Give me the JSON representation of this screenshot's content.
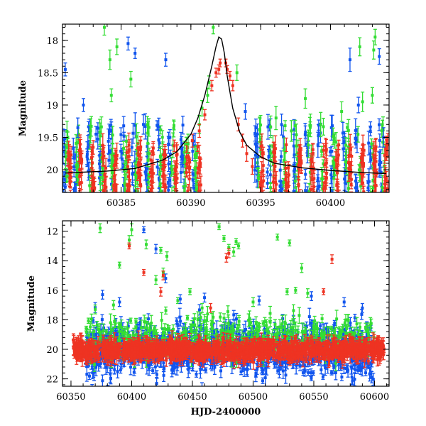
{
  "colors": {
    "green": "#33dd33",
    "blue": "#1155ee",
    "red": "#ee3322",
    "model": "#000000"
  },
  "chart_data": [
    {
      "type": "scatter",
      "xlabel": "",
      "ylabel": "Magnitude",
      "xlim": [
        60380.8,
        60404.2
      ],
      "ylim": [
        20.35,
        17.75
      ],
      "y_inverted": true,
      "xticks": [
        60385,
        60390,
        60395,
        60400
      ],
      "yticks": [
        18,
        18.5,
        19,
        19.5,
        20
      ],
      "grid": false,
      "series": [
        {
          "color_key": "green",
          "x": [
            60383.8,
            60384.2,
            60384.3,
            60384.7,
            60385.7,
            60389.8,
            60390.6,
            60390.8,
            60391.2,
            60391.3,
            60391.6,
            60400.8,
            60402.1,
            60402.3,
            60403.0,
            60403.1,
            60403.2,
            60396.1,
            60397.2,
            60398.2,
            60393.3
          ],
          "y": [
            17.8,
            18.3,
            18.85,
            18.1,
            18.6,
            19.6,
            19.3,
            19.05,
            18.85,
            18.65,
            17.8,
            19.1,
            18.1,
            18.95,
            18.85,
            18.15,
            17.95,
            19.2,
            19.4,
            18.9,
            18.5
          ],
          "err": [
            0.12,
            0.15,
            0.1,
            0.12,
            0.12,
            0.15,
            0.14,
            0.12,
            0.11,
            0.1,
            0.1,
            0.15,
            0.14,
            0.15,
            0.12,
            0.14,
            0.12,
            0.18,
            0.16,
            0.15,
            0.12
          ]
        },
        {
          "color_key": "blue",
          "x": [
            60381.0,
            60381.9,
            60382.3,
            60383.2,
            60385.5,
            60386.0,
            60386.6,
            60388.2,
            60388.5,
            60389.3,
            60393.9,
            60394.8,
            60401.4,
            60402.0,
            60403.5,
            60403.8
          ],
          "y": [
            18.45,
            19.35,
            19.0,
            19.45,
            18.05,
            18.2,
            19.3,
            18.3,
            19.5,
            19.8,
            19.1,
            19.8,
            18.3,
            19.0,
            18.25,
            19.5
          ],
          "err": [
            0.1,
            0.15,
            0.1,
            0.12,
            0.1,
            0.08,
            0.15,
            0.1,
            0.12,
            0.12,
            0.12,
            0.15,
            0.18,
            0.12,
            0.12,
            0.15
          ]
        },
        {
          "color_key": "red",
          "x": [
            60390.1,
            60390.6,
            60391.0,
            60391.5,
            60391.8,
            60392.0,
            60392.1,
            60392.5,
            60392.6,
            60392.8,
            60393.0,
            60393.4,
            60393.7,
            60394.0,
            60394.4
          ],
          "y": [
            19.55,
            19.4,
            19.15,
            18.7,
            18.5,
            18.45,
            18.35,
            18.35,
            18.45,
            18.55,
            18.7,
            19.3,
            19.55,
            19.75,
            19.95
          ],
          "err": [
            0.1,
            0.1,
            0.08,
            0.08,
            0.07,
            0.07,
            0.06,
            0.06,
            0.06,
            0.07,
            0.08,
            0.1,
            0.1,
            0.12,
            0.12
          ]
        }
      ],
      "model_curve": {
        "x": [
          60381,
          60384,
          60386,
          60388,
          60389,
          60390,
          60390.5,
          60391,
          60391.5,
          60391.8,
          60392.0,
          60392.2,
          60392.4,
          60392.6,
          60393.0,
          60393.5,
          60394,
          60395,
          60396,
          60398,
          60400,
          60402,
          60404
        ],
        "y": [
          20.05,
          20.02,
          19.98,
          19.85,
          19.72,
          19.45,
          19.2,
          18.85,
          18.4,
          18.1,
          17.95,
          17.98,
          18.2,
          18.55,
          19.05,
          19.42,
          19.62,
          19.8,
          19.9,
          19.97,
          20.01,
          20.04,
          20.06
        ]
      }
    },
    {
      "type": "scatter",
      "xlabel": "HJD-2400000",
      "ylabel": "Magnitude",
      "xlim": [
        60343,
        60612
      ],
      "ylim": [
        22.5,
        11.3
      ],
      "y_inverted": true,
      "xticks": [
        60350,
        60400,
        60450,
        60500,
        60550,
        60600
      ],
      "yticks": [
        12,
        14,
        16,
        18,
        20,
        22
      ],
      "grid": false,
      "series": [
        {
          "color_key": "green",
          "x": [
            60374,
            60390,
            60398,
            60400,
            60412,
            60424,
            60426,
            60429,
            60438,
            60448,
            60472,
            60476,
            60480,
            60484,
            60486,
            60488,
            60520,
            60528,
            60530,
            60535,
            60540,
            60545,
            60370,
            60385,
            60420,
            60458,
            60500
          ],
          "y": [
            11.8,
            14.3,
            12.6,
            11.9,
            12.9,
            13.3,
            14.8,
            13.7,
            16.7,
            16.1,
            11.7,
            12.5,
            13.1,
            13.4,
            12.7,
            13.0,
            12.4,
            16.1,
            12.8,
            16.0,
            14.5,
            16.2,
            17.3,
            17.0,
            15.3,
            17.2,
            16.8
          ],
          "err": [
            0.3,
            0.2,
            0.3,
            0.4,
            0.3,
            0.2,
            0.3,
            0.3,
            0.2,
            0.2,
            0.2,
            0.2,
            0.2,
            0.3,
            0.2,
            0.2,
            0.2,
            0.2,
            0.2,
            0.2,
            0.3,
            0.3,
            0.3,
            0.3,
            0.3,
            0.3,
            0.3
          ]
        },
        {
          "color_key": "blue",
          "x": [
            60410,
            60420,
            60428,
            60376,
            60390,
            60440,
            60460,
            60505,
            60548,
            60575,
            60590
          ],
          "y": [
            11.9,
            13.2,
            15.2,
            16.3,
            16.8,
            16.6,
            16.5,
            16.7,
            16.4,
            16.8,
            17.2
          ],
          "err": [
            0.2,
            0.3,
            0.3,
            0.3,
            0.3,
            0.3,
            0.3,
            0.3,
            0.3,
            0.3,
            0.3
          ]
        },
        {
          "color_key": "red",
          "x": [
            60398,
            60410,
            60424,
            60426,
            60478,
            60480,
            60565,
            60558,
            60465
          ],
          "y": [
            13.0,
            14.8,
            16.1,
            15.0,
            13.8,
            13.5,
            13.9,
            16.1,
            17.2
          ],
          "err": [
            0.2,
            0.2,
            0.3,
            0.3,
            0.3,
            0.3,
            0.3,
            0.2,
            0.3
          ]
        }
      ],
      "bands": [
        {
          "color_key": "blue",
          "xmin": 60362,
          "xmax": 60600,
          "center": 20.0,
          "spread": 1.7,
          "count": 1100
        },
        {
          "color_key": "green",
          "xmin": 60362,
          "xmax": 60600,
          "center": 19.1,
          "spread": 1.3,
          "count": 380
        },
        {
          "color_key": "red",
          "xmin": 60352,
          "xmax": 60608,
          "center": 20.05,
          "spread": 0.55,
          "count": 1300
        }
      ]
    }
  ]
}
